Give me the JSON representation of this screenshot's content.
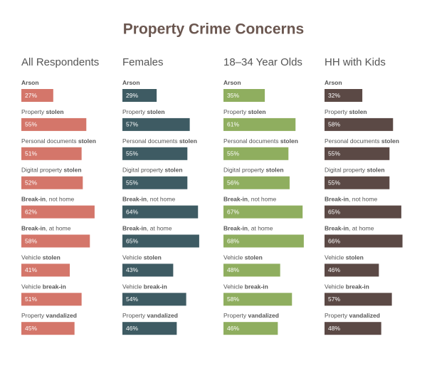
{
  "chart_data": {
    "type": "bar",
    "orientation": "horizontal",
    "title": "Property Crime Concerns",
    "categories": [
      [
        {
          "text": "Arson",
          "bold": true
        }
      ],
      [
        {
          "text": "Property ",
          "bold": false
        },
        {
          "text": "stolen",
          "bold": true
        }
      ],
      [
        {
          "text": "Personal documents ",
          "bold": false
        },
        {
          "text": "stolen",
          "bold": true
        }
      ],
      [
        {
          "text": "Digital property ",
          "bold": false
        },
        {
          "text": "stolen",
          "bold": true
        }
      ],
      [
        {
          "text": "Break-in",
          "bold": true
        },
        {
          "text": ", not home",
          "bold": false
        }
      ],
      [
        {
          "text": "Break-in",
          "bold": true
        },
        {
          "text": ", at home",
          "bold": false
        }
      ],
      [
        {
          "text": "Vehicle ",
          "bold": false
        },
        {
          "text": "stolen",
          "bold": true
        }
      ],
      [
        {
          "text": "Vehicle ",
          "bold": false
        },
        {
          "text": "break-in",
          "bold": true
        }
      ],
      [
        {
          "text": "Property ",
          "bold": false
        },
        {
          "text": "vandalized",
          "bold": true
        }
      ]
    ],
    "series": [
      {
        "name": "All Respondents",
        "color": "#d4766a",
        "values": [
          27,
          55,
          51,
          52,
          62,
          58,
          41,
          51,
          45
        ],
        "value_labels": [
          "27%",
          "55%",
          "51%",
          "52%",
          "62%",
          "58%",
          "41%",
          "51%",
          "45%"
        ]
      },
      {
        "name": "Females",
        "color": "#3e5b63",
        "values": [
          29,
          57,
          55,
          55,
          64,
          65,
          43,
          54,
          46
        ],
        "value_labels": [
          "29%",
          "57%",
          "55%",
          "55%",
          "64%",
          "65%",
          "43%",
          "54%",
          "46%"
        ]
      },
      {
        "name": "18–34 Year Olds",
        "color": "#8fae5f",
        "values": [
          35,
          61,
          55,
          56,
          67,
          68,
          48,
          58,
          46
        ],
        "value_labels": [
          "35%",
          "61%",
          "55%",
          "56%",
          "67%",
          "68%",
          "48%",
          "58%",
          "46%"
        ]
      },
      {
        "name": "HH with Kids",
        "color": "#5b4945",
        "values": [
          32,
          58,
          55,
          55,
          65,
          66,
          46,
          57,
          48
        ],
        "value_labels": [
          "32%",
          "58%",
          "55%",
          "55%",
          "65%",
          "66%",
          "46%",
          "57%",
          "48%"
        ]
      }
    ]
  }
}
